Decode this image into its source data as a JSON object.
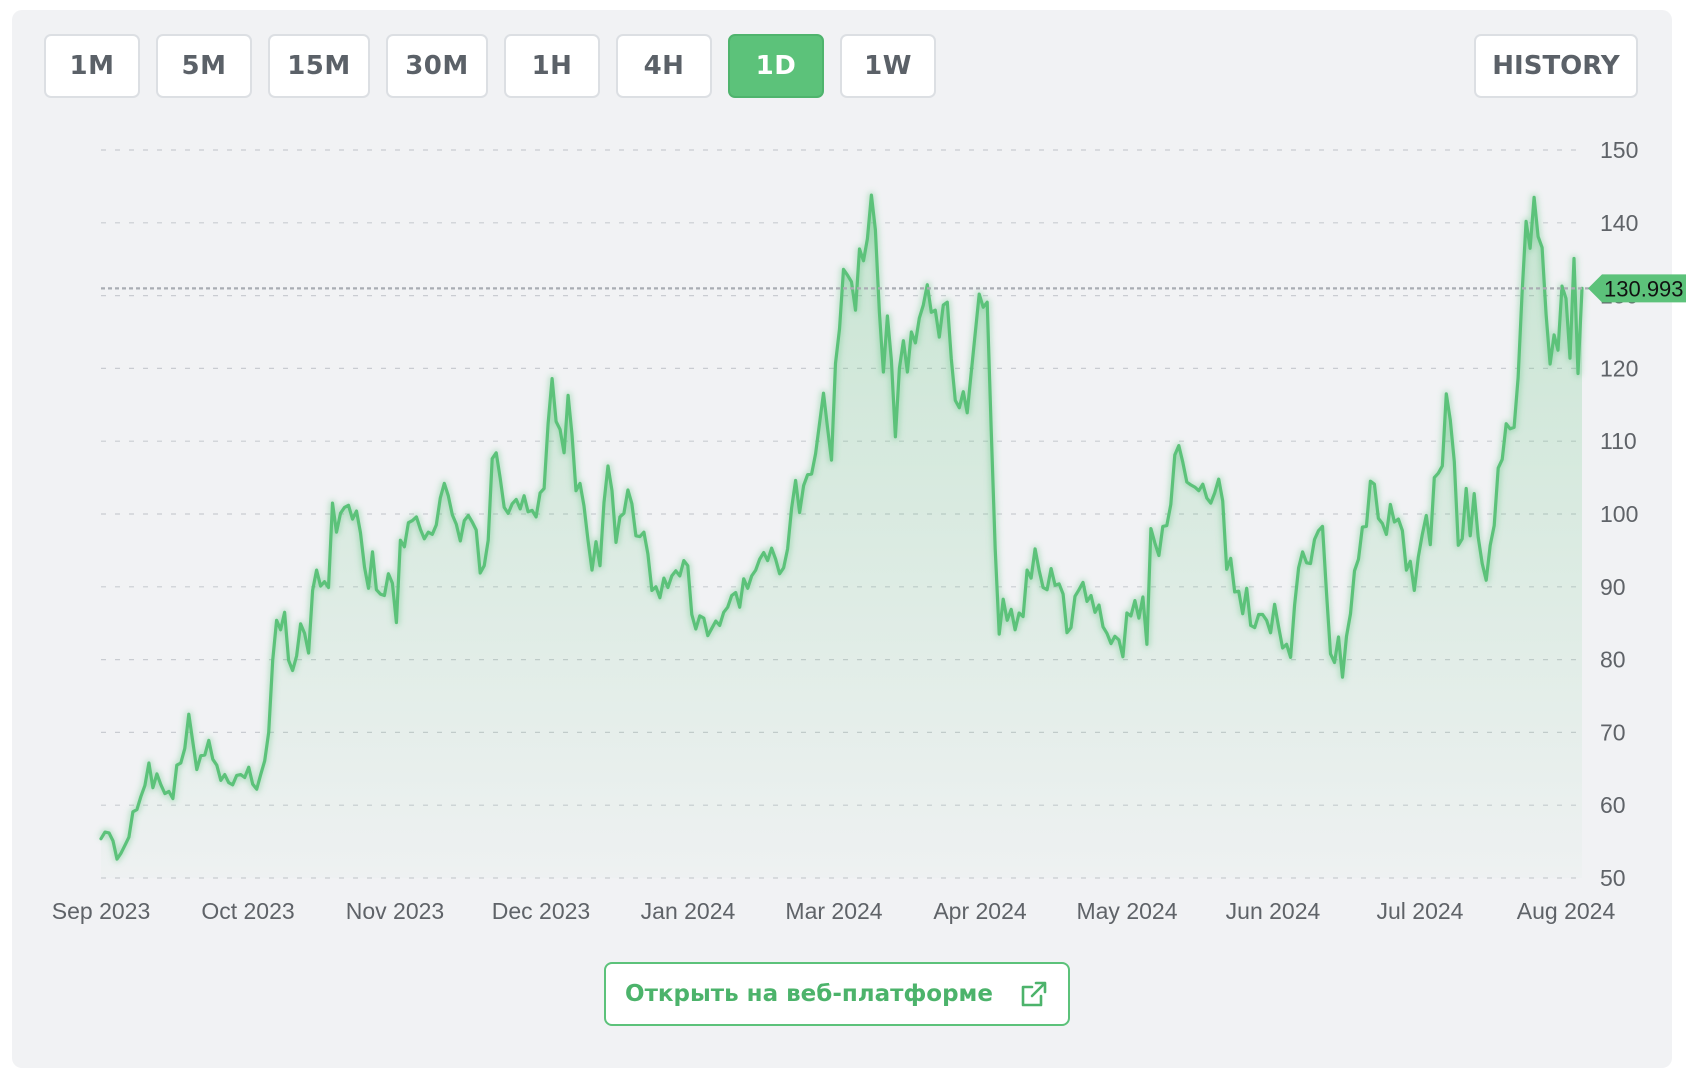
{
  "timeframes": [
    {
      "label": "1M",
      "active": false
    },
    {
      "label": "5M",
      "active": false
    },
    {
      "label": "15M",
      "active": false
    },
    {
      "label": "30M",
      "active": false
    },
    {
      "label": "1H",
      "active": false
    },
    {
      "label": "4H",
      "active": false
    },
    {
      "label": "1D",
      "active": true
    },
    {
      "label": "1W",
      "active": false
    }
  ],
  "history_label": "HISTORY",
  "open_button_label": "Открыть на веб-платформе",
  "colors": {
    "accent": "#5cc27a",
    "line": "#5cc27a",
    "price_tag": "#5cc27a",
    "grid": "#c9ccd1",
    "axis_text": "#5f6368"
  },
  "icons": {
    "open_external": "external-link-icon"
  },
  "chart_data": {
    "type": "area",
    "title": "",
    "xlabel": "",
    "ylabel": "",
    "ylim": [
      50,
      150
    ],
    "yticks": [
      50,
      60,
      70,
      80,
      90,
      100,
      110,
      120,
      130,
      140,
      150
    ],
    "grid": true,
    "legend": "none",
    "xticks": [
      "Sep 2023",
      "Oct 2023",
      "Nov 2023",
      "Dec 2023",
      "Jan 2024",
      "Mar 2024",
      "Apr 2024",
      "May 2024",
      "Jun 2024",
      "Jul 2024",
      "Aug 2024"
    ],
    "current_price": 130.993,
    "current_price_label": "130.993",
    "series": [
      {
        "values": [
          55.4,
          56.3,
          56.2,
          55.1,
          52.6,
          53.4,
          54.5,
          55.6,
          59.1,
          59.4,
          61.2,
          62.7,
          65.8,
          62.4,
          64.3,
          62.8,
          61.6,
          61.9,
          60.9,
          65.5,
          65.8,
          67.8,
          72.5,
          68.7,
          64.9,
          66.8,
          66.9,
          68.9,
          66.3,
          65.5,
          63.4,
          64.2,
          63.1,
          62.8,
          64.1,
          64.2,
          63.8,
          65.2,
          62.9,
          62.2,
          64.2,
          66.1,
          70.0,
          79.9,
          85.4,
          84.1,
          86.5,
          79.9,
          78.5,
          80.5,
          84.9,
          83.6,
          80.9,
          89.5,
          92.3,
          90.1,
          90.7,
          89.9,
          101.5,
          97.5,
          100.1,
          100.9,
          101.2,
          99.3,
          100.4,
          97.4,
          92.7,
          89.8,
          94.8,
          89.6,
          89.0,
          88.8,
          91.8,
          90.5,
          85.1,
          96.4,
          95.5,
          98.8,
          99.1,
          99.6,
          97.9,
          96.6,
          97.5,
          97.2,
          98.5,
          102.2,
          104.2,
          102.5,
          99.9,
          98.6,
          96.3,
          99.1,
          99.8,
          98.9,
          97.8,
          91.9,
          92.9,
          96.4,
          107.6,
          108.4,
          104.9,
          100.9,
          100.1,
          101.4,
          102.0,
          100.7,
          102.5,
          100.3,
          100.5,
          99.6,
          102.9,
          103.5,
          112.4,
          118.6,
          112.7,
          111.6,
          108.4,
          116.3,
          110.9,
          103.2,
          104.2,
          101.1,
          96.4,
          92.3,
          96.2,
          92.9,
          101.6,
          106.6,
          103.2,
          96.1,
          99.6,
          100.1,
          103.3,
          101.4,
          97.0,
          96.9,
          97.5,
          94.5,
          89.5,
          90.0,
          88.5,
          91.2,
          89.9,
          91.5,
          92.2,
          91.5,
          93.6,
          92.9,
          86.2,
          84.2,
          86.0,
          85.7,
          83.3,
          84.3,
          85.3,
          84.7,
          86.5,
          87.2,
          88.8,
          89.2,
          87.2,
          91.1,
          89.8,
          91.5,
          92.3,
          93.8,
          94.7,
          93.6,
          95.3,
          93.8,
          91.8,
          92.6,
          95.2,
          100.8,
          104.6,
          100.2,
          103.9,
          105.4,
          105.5,
          108.3,
          112.4,
          116.6,
          111.9,
          107.4,
          120.7,
          125.4,
          133.6,
          132.8,
          131.9,
          128.0,
          136.4,
          134.8,
          137.8,
          143.8,
          139.0,
          127.7,
          119.5,
          127.2,
          121.1,
          110.6,
          120.0,
          123.8,
          119.5,
          125.0,
          123.5,
          126.9,
          128.7,
          131.5,
          127.7,
          128.0,
          124.3,
          128.7,
          129.1,
          121.3,
          115.6,
          114.6,
          116.8,
          113.9,
          119.4,
          124.8,
          130.2,
          128.4,
          129.1,
          111.6,
          95.2,
          83.5,
          88.3,
          85.4,
          86.9,
          84.1,
          86.4,
          85.9,
          92.3,
          91.2,
          95.2,
          92.3,
          89.9,
          89.6,
          92.5,
          90.2,
          90.4,
          89.0,
          83.7,
          84.4,
          88.7,
          89.6,
          90.6,
          88.0,
          88.8,
          86.5,
          87.5,
          84.5,
          83.6,
          82.2,
          83.2,
          82.7,
          80.4,
          86.4,
          86.0,
          88.1,
          85.7,
          88.6,
          82.1,
          98.0,
          96.0,
          94.3,
          98.3,
          98.4,
          101.3,
          108.1,
          109.4,
          107.1,
          104.4,
          104.0,
          103.7,
          103.2,
          104.1,
          102.2,
          101.5,
          102.9,
          104.8,
          101.8,
          92.4,
          93.9,
          89.3,
          89.4,
          86.3,
          89.8,
          84.7,
          84.4,
          86.2,
          86.2,
          85.4,
          83.7,
          87.6,
          84.5,
          81.6,
          82.1,
          80.3,
          87.5,
          92.6,
          94.8,
          93.3,
          93.2,
          96.5,
          97.7,
          98.3,
          89.2,
          80.8,
          79.6,
          83.1,
          77.6,
          83.2,
          86.3,
          92.2,
          93.8,
          98.2,
          98.3,
          104.5,
          104.1,
          99.4,
          98.7,
          97.2,
          101.3,
          98.9,
          99.3,
          97.7,
          92.3,
          93.5,
          89.5,
          94.1,
          97.2,
          99.8,
          95.8,
          105.0,
          105.6,
          106.6,
          116.5,
          112.9,
          107.2,
          95.7,
          96.6,
          103.5,
          97.0,
          102.8,
          96.8,
          93.2,
          90.9,
          95.7,
          98.4,
          106.3,
          107.5,
          112.4,
          111.7,
          111.9,
          118.7,
          130.4,
          140.2,
          136.5,
          143.5,
          138.1,
          136.6,
          127.4,
          120.6,
          124.6,
          122.5,
          131.3,
          129.6,
          121.4,
          135.1,
          119.3,
          130.993
        ]
      }
    ]
  }
}
